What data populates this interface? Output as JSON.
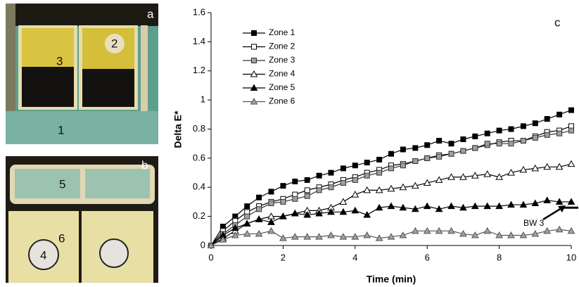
{
  "photo_panels": [
    {
      "letter": "a",
      "labels": [
        "3",
        "2",
        "1"
      ]
    },
    {
      "letter": "b",
      "labels": [
        "5",
        "6",
        "4"
      ]
    }
  ],
  "chart_data": {
    "type": "line",
    "panel_label": "c",
    "x_label": "Time (min)",
    "y_label": "Delta E*",
    "xlim": [
      0,
      10
    ],
    "ylim": [
      0,
      1.6
    ],
    "xticks": [
      0,
      2,
      4,
      6,
      8,
      10
    ],
    "yticks": [
      0,
      0.2,
      0.4,
      0.6,
      0.8,
      1,
      1.2,
      1.4,
      1.6
    ],
    "x": [
      0,
      0.33,
      0.67,
      1,
      1.33,
      1.67,
      2,
      2.33,
      2.67,
      3,
      3.33,
      3.67,
      4,
      4.33,
      4.67,
      5,
      5.33,
      5.67,
      6,
      6.33,
      6.67,
      7,
      7.33,
      7.67,
      8,
      8.33,
      8.67,
      9,
      9.33,
      9.67,
      10
    ],
    "series": [
      {
        "name": "Zone 1",
        "color": "#000000",
        "marker": "square",
        "marker_fill": "#000000",
        "values": [
          0,
          0.13,
          0.2,
          0.27,
          0.33,
          0.37,
          0.41,
          0.44,
          0.45,
          0.48,
          0.5,
          0.53,
          0.55,
          0.57,
          0.59,
          0.63,
          0.66,
          0.67,
          0.69,
          0.72,
          0.7,
          0.73,
          0.75,
          0.77,
          0.79,
          0.8,
          0.82,
          0.84,
          0.87,
          0.9,
          0.93
        ]
      },
      {
        "name": "Zone 2",
        "color": "#000000",
        "marker": "square",
        "marker_fill": "#ffffff",
        "values": [
          0,
          0.1,
          0.17,
          0.23,
          0.27,
          0.3,
          0.32,
          0.35,
          0.38,
          0.4,
          0.42,
          0.45,
          0.47,
          0.5,
          0.52,
          0.55,
          0.56,
          0.58,
          0.6,
          0.62,
          0.63,
          0.65,
          0.67,
          0.69,
          0.71,
          0.72,
          0.72,
          0.75,
          0.78,
          0.79,
          0.82
        ]
      },
      {
        "name": "Zone 3",
        "color": "#333333",
        "marker": "square",
        "marker_fill": "#a0a0a0",
        "values": [
          0,
          0.08,
          0.14,
          0.2,
          0.25,
          0.29,
          0.3,
          0.32,
          0.34,
          0.38,
          0.4,
          0.43,
          0.45,
          0.48,
          0.5,
          0.53,
          0.55,
          0.58,
          0.6,
          0.61,
          0.63,
          0.65,
          0.67,
          0.7,
          0.7,
          0.7,
          0.72,
          0.74,
          0.76,
          0.77,
          0.79
        ]
      },
      {
        "name": "Zone 4",
        "color": "#000000",
        "marker": "triangle",
        "marker_fill": "#ffffff",
        "values": [
          0,
          0.05,
          0.1,
          0.15,
          0.18,
          0.2,
          0.2,
          0.22,
          0.24,
          0.24,
          0.26,
          0.3,
          0.35,
          0.38,
          0.38,
          0.39,
          0.4,
          0.41,
          0.43,
          0.45,
          0.47,
          0.47,
          0.48,
          0.49,
          0.47,
          0.5,
          0.52,
          0.53,
          0.54,
          0.54,
          0.56
        ]
      },
      {
        "name": "Zone 5",
        "color": "#000000",
        "marker": "triangle",
        "marker_fill": "#000000",
        "values": [
          0,
          0.07,
          0.12,
          0.15,
          0.18,
          0.16,
          0.2,
          0.22,
          0.21,
          0.22,
          0.23,
          0.23,
          0.24,
          0.21,
          0.26,
          0.27,
          0.26,
          0.25,
          0.27,
          0.25,
          0.27,
          0.26,
          0.27,
          0.27,
          0.27,
          0.28,
          0.28,
          0.29,
          0.31,
          0.3,
          0.3
        ]
      },
      {
        "name": "Zone 6",
        "color": "#555555",
        "marker": "triangle",
        "marker_fill": "#a0a0a0",
        "values": [
          0,
          0.04,
          0.07,
          0.08,
          0.08,
          0.1,
          0.05,
          0.06,
          0.06,
          0.06,
          0.07,
          0.06,
          0.06,
          0.07,
          0.05,
          0.06,
          0.07,
          0.1,
          0.1,
          0.1,
          0.1,
          0.08,
          0.07,
          0.1,
          0.07,
          0.07,
          0.07,
          0.08,
          0.1,
          0.11,
          0.1
        ]
      }
    ],
    "reference": {
      "label": "BW 3",
      "value": 0.26
    }
  }
}
